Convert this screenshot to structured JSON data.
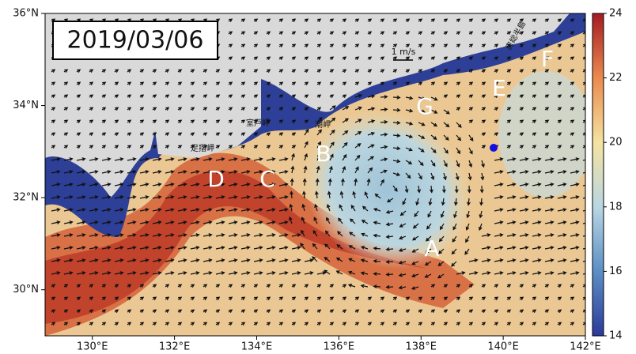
{
  "map": {
    "date": "2019/03/06",
    "xlim": [
      128.85,
      142
    ],
    "ylim": [
      29,
      36
    ],
    "xticks": [
      {
        "value": 130,
        "label": "130°E"
      },
      {
        "value": 132,
        "label": "132°E"
      },
      {
        "value": 134,
        "label": "134°E"
      },
      {
        "value": 136,
        "label": "136°E"
      },
      {
        "value": 138,
        "label": "138°E"
      },
      {
        "value": 140,
        "label": "140°E"
      },
      {
        "value": 142,
        "label": "142°E"
      }
    ],
    "yticks": [
      {
        "value": 30,
        "label": "30°N"
      },
      {
        "value": 32,
        "label": "32°N"
      },
      {
        "value": 34,
        "label": "34°N"
      },
      {
        "value": 36,
        "label": "36°N"
      }
    ],
    "colorbar": {
      "lim": [
        14,
        24
      ],
      "ticks": [
        14,
        16,
        18,
        20,
        22,
        24
      ]
    },
    "scale_label": "1 m/s",
    "labels": [
      "A",
      "B",
      "C",
      "D",
      "E",
      "F",
      "G"
    ],
    "places": [
      "足摺岬",
      "室戸岬",
      "潮岬",
      "房総半島"
    ]
  }
}
